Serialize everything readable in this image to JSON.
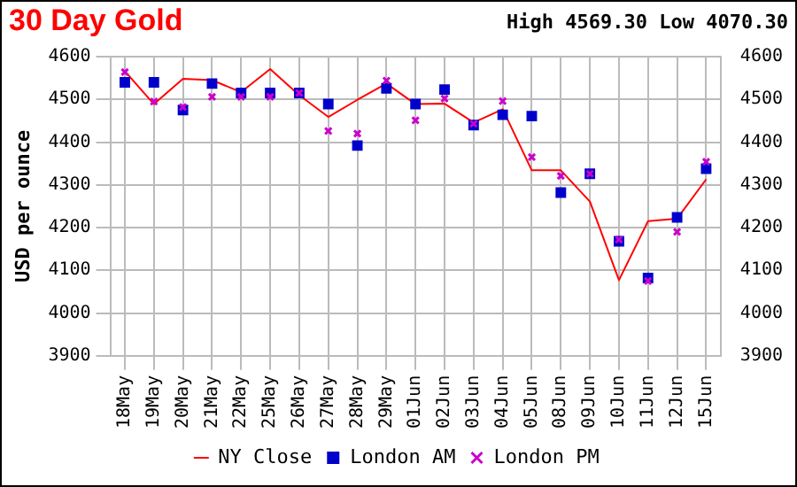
{
  "chart_data": {
    "type": "line",
    "title": "30 Day Gold",
    "subtitle": "High 4569.30 Low 4070.30",
    "ylabel": "USD per ounce",
    "categories": [
      "18May",
      "19May",
      "20May",
      "21May",
      "22May",
      "25May",
      "26May",
      "27May",
      "28May",
      "29May",
      "01Jun",
      "02Jun",
      "03Jun",
      "04Jun",
      "05Jun",
      "08Jun",
      "09Jun",
      "10Jun",
      "11Jun",
      "12Jun",
      "15Jun"
    ],
    "series": [
      {
        "name": "NY Close",
        "marker": "none",
        "color": "#ff0000",
        "values": [
          4566,
          4489,
          4548,
          4545,
          4517,
          4571,
          4510,
          4459,
          4499,
          4537,
          4489,
          4490,
          4446,
          4477,
          4334,
          4334,
          4261,
          4077,
          4215,
          4221,
          4313
        ]
      },
      {
        "name": "London AM",
        "type": "scatter",
        "marker": "square",
        "color": "#0000cc",
        "values": [
          4540,
          4540,
          4475,
          4537,
          4515,
          4515,
          4515,
          4489,
          4392,
          4526,
          4489,
          4523,
          4440,
          4464,
          4461,
          4282,
          4326,
          4168,
          4082,
          4224,
          4338
        ]
      },
      {
        "name": "London PM",
        "type": "scatter",
        "marker": "cross",
        "color": "#cc00cc",
        "values": [
          4564,
          4495,
          4482,
          4506,
          4506,
          4506,
          4515,
          4426,
          4420,
          4544,
          4451,
          4502,
          4443,
          4496,
          4365,
          4321,
          4326,
          4172,
          4075,
          4190,
          4354
        ]
      }
    ],
    "ylim": [
      3900,
      4600
    ],
    "yticks": [
      3900,
      4000,
      4100,
      4200,
      4300,
      4400,
      4500,
      4600
    ],
    "y2lim": [
      3900,
      4600
    ],
    "y2ticks": [
      3900,
      4000,
      4100,
      4200,
      4300,
      4400,
      4500,
      4600
    ],
    "grid": true,
    "legend": "bottom"
  }
}
